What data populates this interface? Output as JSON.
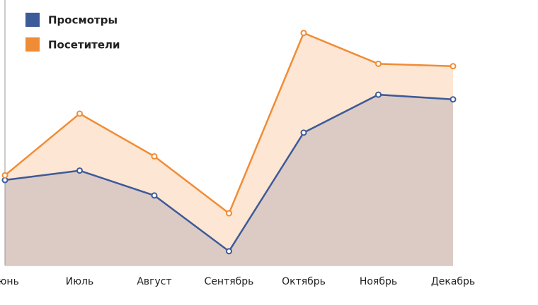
{
  "chart_data": {
    "type": "area",
    "categories": [
      "Июнь",
      "Июль",
      "Август",
      "Сентябрь",
      "Октябрь",
      "Ноябрь",
      "Декабрь"
    ],
    "series": [
      {
        "name": "Просмотры",
        "color": "#3d5a99",
        "fill": "#dccbc4",
        "values": [
          36,
          40,
          29.5,
          6,
          56,
          72,
          70
        ]
      },
      {
        "name": "Посетители",
        "color": "#f08c35",
        "fill": "#fde6d3",
        "values": [
          38,
          64,
          46,
          22,
          98,
          85,
          84
        ]
      }
    ],
    "ylim": [
      0,
      100
    ]
  }
}
